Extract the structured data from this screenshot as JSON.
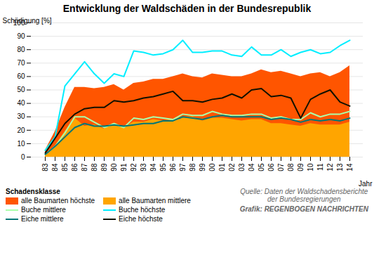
{
  "chart_data": {
    "type": "line",
    "title": "Entwicklung der Waldschäden in der Bundesrepublik",
    "ylabel": "Schädigung [%]",
    "xlabel": "Jahr",
    "categories": [
      "83",
      "84",
      "85",
      "86",
      "87",
      "88",
      "89",
      "90",
      "91",
      "92",
      "93",
      "94",
      "95",
      "96",
      "97",
      "98",
      "99",
      "00",
      "01",
      "02",
      "03",
      "04",
      "05",
      "06",
      "07",
      "08",
      "09",
      "10",
      "11",
      "12",
      "13",
      "14"
    ],
    "series": [
      {
        "name": "alle Baumarten höchste",
        "type": "area",
        "color": "#FF5500",
        "values": [
          5,
          19,
          37,
          52,
          52,
          51,
          52,
          54,
          50,
          55,
          56,
          58,
          58,
          60,
          62,
          60,
          59,
          62,
          61,
          60,
          60,
          62,
          65,
          63,
          64,
          62,
          60,
          62,
          63,
          60,
          63,
          68
        ]
      },
      {
        "name": "alle Baumarten mittlere",
        "type": "area",
        "color": "#FFA500",
        "values": [
          2,
          8,
          19,
          29,
          23,
          24,
          21,
          25,
          22,
          26,
          26,
          28,
          27,
          28,
          30,
          30,
          27,
          29,
          29,
          28,
          27,
          28,
          28,
          25,
          25,
          24,
          23,
          25,
          24,
          24,
          24,
          26
        ]
      },
      {
        "name": "Buche mittlere",
        "type": "line",
        "color": "#AAFFAA",
        "values": [
          2,
          8,
          18,
          30,
          30,
          26,
          22,
          25,
          22,
          29,
          28,
          30,
          29,
          28,
          32,
          31,
          31,
          34,
          32,
          31,
          31,
          32,
          32,
          29,
          30,
          28,
          28,
          33,
          30,
          32,
          32,
          34
        ]
      },
      {
        "name": "Buche höchste",
        "type": "line",
        "color": "#00EEFF",
        "values": [
          5,
          15,
          53,
          62,
          71,
          62,
          55,
          62,
          60,
          79,
          78,
          76,
          77,
          80,
          87,
          78,
          78,
          79,
          79,
          76,
          75,
          82,
          76,
          76,
          80,
          75,
          78,
          80,
          77,
          78,
          83,
          87
        ]
      },
      {
        "name": "Eiche mittlere",
        "type": "line",
        "color": "#007777",
        "values": [
          2,
          8,
          15,
          22,
          25,
          23,
          23,
          24,
          23,
          24,
          25,
          25,
          27,
          27,
          30,
          29,
          28,
          30,
          31,
          30,
          30,
          30,
          30,
          28,
          29,
          28,
          26,
          28,
          27,
          28,
          27,
          29
        ]
      },
      {
        "name": "Eiche höchste",
        "type": "line",
        "color": "#111100",
        "values": [
          3,
          14,
          25,
          32,
          36,
          37,
          37,
          42,
          41,
          42,
          44,
          45,
          47,
          49,
          42,
          42,
          41,
          43,
          44,
          47,
          44,
          50,
          51,
          45,
          46,
          44,
          29,
          43,
          47,
          50,
          41,
          38
        ]
      }
    ],
    "ylim": [
      0,
      100
    ],
    "yticks": [
      0,
      10,
      20,
      30,
      40,
      50,
      60,
      70,
      80,
      90,
      100
    ],
    "grid": true,
    "legend": "lower left",
    "legend_title": "Schadensklasse",
    "annotations": [
      "Quelle: Daten der Waldschadensberichte\nder Bundesregierungen",
      "Grafik: REGENBOGEN NACHRICHTEN"
    ]
  }
}
